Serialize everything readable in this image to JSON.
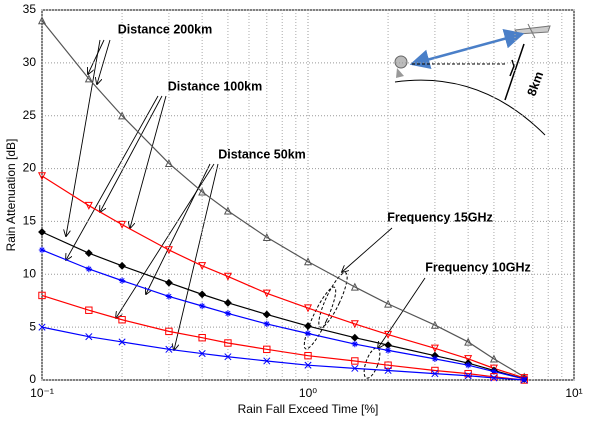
{
  "chart_data": {
    "type": "scatter",
    "x_label": "Rain Fall Exceed Time [%]",
    "y_label": "Rain Attenuation [dB]",
    "xscale": "log",
    "grid": true,
    "xlim": [
      0.1,
      10
    ],
    "ylim": [
      0,
      35
    ],
    "xticks": [
      {
        "value": 0.1,
        "label": "10⁻¹"
      },
      {
        "value": 1,
        "label": "10⁰"
      },
      {
        "value": 10,
        "label": "10¹"
      }
    ],
    "xminorticks": [
      0.2,
      0.3,
      0.4,
      0.5,
      0.6,
      0.7,
      0.8,
      0.9,
      2,
      3,
      4,
      5,
      6,
      7,
      8,
      9
    ],
    "yticks": [
      0,
      5,
      10,
      15,
      20,
      25,
      30,
      35
    ],
    "x": [
      0.1,
      0.15,
      0.2,
      0.3,
      0.4,
      0.5,
      0.7,
      1,
      1.5,
      2,
      3,
      4,
      5,
      6.5
    ],
    "series": [
      {
        "color": "#555555",
        "marker": "triangle-up",
        "values": [
          34,
          28.5,
          25,
          20.5,
          17.8,
          16,
          13.5,
          11.2,
          8.8,
          7.2,
          5.2,
          3.6,
          2.0,
          0.3
        ]
      },
      {
        "color": "#ff0000",
        "marker": "triangle-down",
        "values": [
          19.3,
          16.5,
          14.7,
          12.3,
          10.8,
          9.8,
          8.2,
          6.8,
          5.3,
          4.3,
          3.0,
          2.0,
          1.1,
          0.2
        ]
      },
      {
        "color": "#000000",
        "marker": "diamond",
        "values": [
          14,
          12,
          10.8,
          9.2,
          8.1,
          7.3,
          6.2,
          5.1,
          4.0,
          3.3,
          2.3,
          1.6,
          0.9,
          0.1
        ]
      },
      {
        "color": "#0000ff",
        "marker": "star",
        "values": [
          12.3,
          10.5,
          9.4,
          7.9,
          7.0,
          6.3,
          5.3,
          4.4,
          3.4,
          2.8,
          2.0,
          1.4,
          0.8,
          0.1
        ]
      },
      {
        "color": "#ff0000",
        "marker": "square",
        "values": [
          8,
          6.6,
          5.7,
          4.6,
          4.0,
          3.5,
          2.9,
          2.3,
          1.8,
          1.4,
          0.9,
          0.6,
          0.3,
          0
        ]
      },
      {
        "color": "#0000ff",
        "marker": "x",
        "values": [
          5,
          4.1,
          3.6,
          2.9,
          2.5,
          2.2,
          1.8,
          1.4,
          1.1,
          0.9,
          0.6,
          0.4,
          0.2,
          0
        ]
      }
    ],
    "annotations": [
      {
        "text": "Distance 200km",
        "color": "#000000"
      },
      {
        "text": "Distance 100km",
        "color": "#ff0000"
      },
      {
        "text": "Distance 50km",
        "color": "#0000ff"
      },
      {
        "text": "Frequency  15GHz",
        "color": "#000000"
      },
      {
        "text": "Frequency  10GHz",
        "color": "#000000"
      },
      {
        "text": "8km",
        "color": "#000000"
      }
    ]
  }
}
